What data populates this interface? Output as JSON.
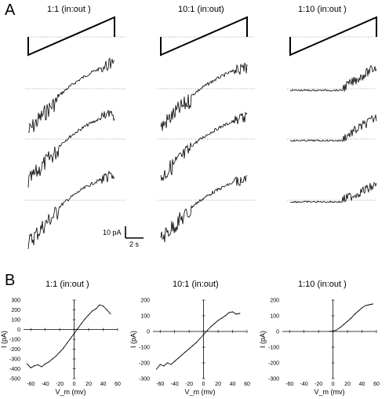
{
  "panel_a": {
    "letter": "A",
    "conditions": [
      "1:1  (in:out )",
      "10:1  (in:out)",
      "1:10  (in:out )"
    ],
    "scale_bar": {
      "current": "10 pA",
      "time": "2 s"
    }
  },
  "panel_b": {
    "letter": "B",
    "conditions": [
      "1:1  (in:out )",
      "10:1  (in:out)",
      "1:10  (in:out )"
    ]
  },
  "chart_data": [
    {
      "type": "line",
      "title": "1:1  (in:out )",
      "xlabel": "V_m (mv)",
      "ylabel": "I (pA)",
      "xlim": [
        -70,
        60
      ],
      "ylim": [
        -500,
        300
      ],
      "x_ticks": [
        -60,
        -40,
        -20,
        0,
        20,
        40,
        60
      ],
      "y_ticks": [
        -500,
        -400,
        -300,
        -200,
        -100,
        0,
        100,
        200,
        300
      ],
      "x": [
        -65,
        -60,
        -55,
        -50,
        -45,
        -40,
        -35,
        -30,
        -25,
        -20,
        -15,
        -10,
        -5,
        0,
        5,
        10,
        15,
        20,
        25,
        30,
        35,
        40,
        45,
        50
      ],
      "y": [
        -350,
        -390,
        -370,
        -360,
        -380,
        -350,
        -330,
        -300,
        -270,
        -230,
        -190,
        -140,
        -90,
        -40,
        10,
        60,
        110,
        150,
        190,
        210,
        250,
        240,
        200,
        160
      ]
    },
    {
      "type": "line",
      "title": "10:1  (in:out)",
      "xlabel": "V_m (mv)",
      "ylabel": "I (pA)",
      "xlim": [
        -70,
        60
      ],
      "ylim": [
        -300,
        200
      ],
      "x_ticks": [
        -60,
        -40,
        -20,
        0,
        20,
        40,
        60
      ],
      "y_ticks": [
        -300,
        -200,
        -100,
        0,
        100,
        200
      ],
      "x": [
        -65,
        -60,
        -55,
        -50,
        -45,
        -40,
        -35,
        -30,
        -25,
        -20,
        -15,
        -10,
        -5,
        0,
        5,
        10,
        15,
        20,
        25,
        30,
        35,
        40,
        45,
        50
      ],
      "y": [
        -240,
        -210,
        -220,
        -200,
        -210,
        -190,
        -170,
        -150,
        -130,
        -110,
        -90,
        -70,
        -45,
        -20,
        5,
        30,
        50,
        70,
        85,
        100,
        120,
        125,
        110,
        115
      ]
    },
    {
      "type": "line",
      "title": "1:10  (in:out )",
      "xlabel": "V_m (mv)",
      "ylabel": "I (pA)",
      "xlim": [
        -70,
        60
      ],
      "ylim": [
        -300,
        200
      ],
      "x_ticks": [
        -60,
        -40,
        -20,
        0,
        20,
        40,
        60
      ],
      "y_ticks": [
        -300,
        -200,
        -100,
        0,
        100,
        200
      ],
      "x": [
        -5,
        0,
        5,
        10,
        15,
        20,
        25,
        30,
        35,
        40,
        45,
        50,
        55
      ],
      "y": [
        0,
        2,
        10,
        25,
        45,
        65,
        85,
        110,
        130,
        150,
        165,
        170,
        175
      ]
    }
  ]
}
